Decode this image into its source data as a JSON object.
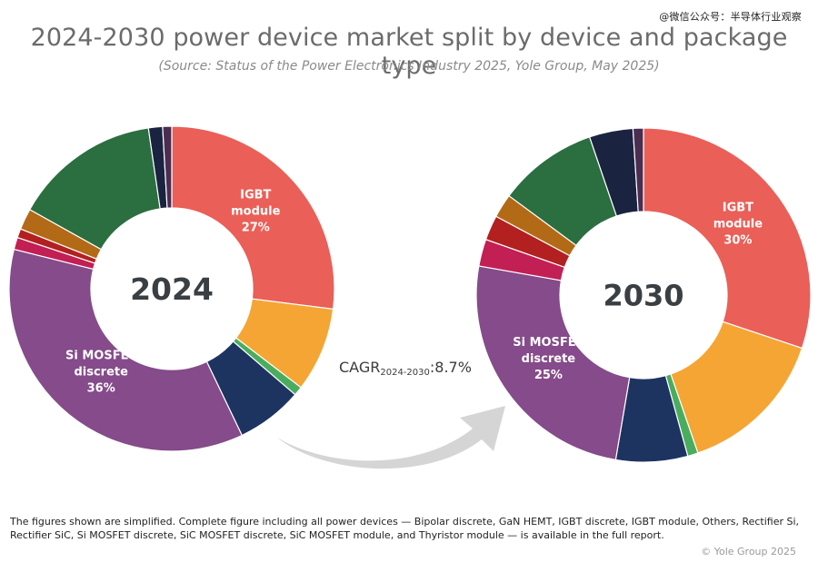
{
  "watermark": "@微信公众号：半导体行业观察",
  "header": {
    "title": "2024-2030 power device market split by device and package type",
    "subtitle": "(Source: Status of the Power Electronics Industry 2025, Yole Group, May 2025)"
  },
  "cagr": {
    "prefix": "CAGR",
    "subscript": "2024-2030",
    "value": ":8.7%"
  },
  "footnote": "The figures shown are simplified. Complete figure including all power devices — Bipolar discrete, GaN HEMT, IGBT discrete, IGBT module, Others, Rectifier Si, Rectifier SiC, Si MOSFET discrete, SiC MOSFET discrete, SiC MOSFET module, and Thyristor module — is available in the full report.",
  "copyright": "© Yole Group 2025",
  "colors": {
    "IGBT module": "#ea5f57",
    "orange": "#f5a534",
    "green-thin": "#4aad5e",
    "navy": "#1d3461",
    "Si MOSFET discrete": "#854b8a",
    "magenta": "#c21f54",
    "red": "#b22020",
    "brown": "#b36a16",
    "dark-green": "#2b6e40",
    "dark-navy": "#1a2340",
    "plum": "#4b2d52",
    "arrow": "#d5d5d5"
  },
  "chart_data": [
    {
      "type": "pie",
      "center_label": "2024",
      "slices": [
        {
          "name": "IGBT module",
          "value": 27,
          "label": [
            "IGBT",
            "module",
            "27%"
          ],
          "color_key": "IGBT module"
        },
        {
          "name": "",
          "value": 8.4,
          "label": [],
          "color_key": "orange"
        },
        {
          "name": "",
          "value": 0.9,
          "label": [],
          "color_key": "green-thin"
        },
        {
          "name": "",
          "value": 6.6,
          "label": [],
          "color_key": "navy"
        },
        {
          "name": "Si MOSFET discrete",
          "value": 36,
          "label": [
            "Si MOSFET",
            "discrete",
            "36%"
          ],
          "color_key": "Si MOSFET discrete"
        },
        {
          "name": "",
          "value": 1.2,
          "label": [],
          "color_key": "magenta"
        },
        {
          "name": "",
          "value": 0.9,
          "label": [],
          "color_key": "red"
        },
        {
          "name": "",
          "value": 2.1,
          "label": [],
          "color_key": "brown"
        },
        {
          "name": "",
          "value": 14.6,
          "label": [],
          "color_key": "dark-green"
        },
        {
          "name": "",
          "value": 1.4,
          "label": [],
          "color_key": "dark-navy"
        },
        {
          "name": "",
          "value": 0.9,
          "label": [],
          "color_key": "plum"
        }
      ]
    },
    {
      "type": "pie",
      "center_label": "2030",
      "slices": [
        {
          "name": "IGBT module",
          "value": 30,
          "label": [
            "IGBT",
            "module",
            "30%"
          ],
          "color_key": "IGBT module"
        },
        {
          "name": "",
          "value": 14.5,
          "label": [],
          "color_key": "orange"
        },
        {
          "name": "",
          "value": 1.0,
          "label": [],
          "color_key": "green-thin"
        },
        {
          "name": "",
          "value": 6.9,
          "label": [],
          "color_key": "navy"
        },
        {
          "name": "Si MOSFET discrete",
          "value": 25,
          "label": [
            "Si MOSFET",
            "discrete",
            "25%"
          ],
          "color_key": "Si MOSFET discrete"
        },
        {
          "name": "",
          "value": 2.6,
          "label": [],
          "color_key": "magenta"
        },
        {
          "name": "",
          "value": 2.4,
          "label": [],
          "color_key": "red"
        },
        {
          "name": "",
          "value": 2.3,
          "label": [],
          "color_key": "brown"
        },
        {
          "name": "",
          "value": 9.6,
          "label": [],
          "color_key": "dark-green"
        },
        {
          "name": "",
          "value": 4.2,
          "label": [],
          "color_key": "dark-navy"
        },
        {
          "name": "",
          "value": 1.0,
          "label": [],
          "color_key": "plum"
        }
      ]
    }
  ]
}
